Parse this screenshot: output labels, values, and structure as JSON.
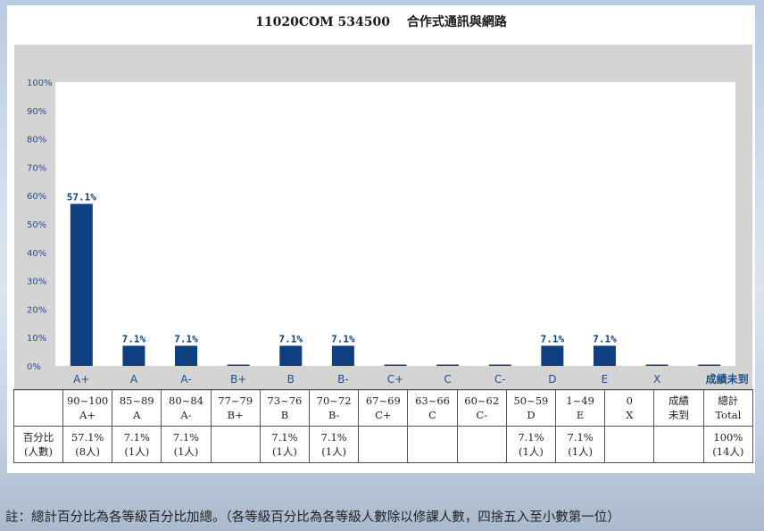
{
  "title": "11020COM 534500　 合作式通訊與網路",
  "chart_data": {
    "type": "bar",
    "categories": [
      "A+",
      "A",
      "A-",
      "B+",
      "B",
      "B-",
      "C+",
      "C",
      "C-",
      "D",
      "E",
      "X",
      "成績未到"
    ],
    "values": [
      57.1,
      7.1,
      7.1,
      0,
      7.1,
      7.1,
      0,
      0,
      0,
      7.1,
      7.1,
      0,
      0
    ],
    "value_labels": [
      "57.1%",
      "7.1%",
      "7.1%",
      "",
      "7.1%",
      "7.1%",
      "",
      "",
      "",
      "7.1%",
      "7.1%",
      "",
      ""
    ],
    "y_ticks": [
      "0%",
      "10%",
      "20%",
      "30%",
      "40%",
      "50%",
      "60%",
      "70%",
      "80%",
      "90%",
      "100%"
    ],
    "ylim": [
      0,
      100
    ],
    "grid": false,
    "colors": {
      "bar": "#0e3f80",
      "label": "#0e3f80",
      "plot_bg": "#ffffff",
      "frame_bg": "#d4d4d4",
      "tick": "#1f4f8f"
    }
  },
  "table": {
    "ranges": [
      [
        "90~100",
        "A+"
      ],
      [
        "85~89",
        "A"
      ],
      [
        "80~84",
        "A-"
      ],
      [
        "77~79",
        "B+"
      ],
      [
        "73~76",
        "B"
      ],
      [
        "70~72",
        "B-"
      ],
      [
        "67~69",
        "C+"
      ],
      [
        "63~66",
        "C"
      ],
      [
        "60~62",
        "C-"
      ],
      [
        "50~59",
        "D"
      ],
      [
        "1~49",
        "E"
      ],
      [
        "0",
        "X"
      ],
      [
        "成績",
        "未到"
      ],
      [
        "總計",
        "Total"
      ]
    ],
    "row_label": [
      "百分比",
      "(人數)"
    ],
    "percent": [
      [
        "57.1%",
        "(8人)"
      ],
      [
        "7.1%",
        "(1人)"
      ],
      [
        "7.1%",
        "(1人)"
      ],
      [
        "",
        ""
      ],
      [
        "7.1%",
        "(1人)"
      ],
      [
        "7.1%",
        "(1人)"
      ],
      [
        "",
        ""
      ],
      [
        "",
        ""
      ],
      [
        "",
        ""
      ],
      [
        "7.1%",
        "(1人)"
      ],
      [
        "7.1%",
        "(1人)"
      ],
      [
        "",
        ""
      ],
      [
        "",
        ""
      ],
      [
        "100%",
        "(14人)"
      ]
    ]
  },
  "note": "註：總計百分比為各等級百分比加總。（各等級百分比為各等級人數除以修課人數，四捨五入至小數第一位）"
}
